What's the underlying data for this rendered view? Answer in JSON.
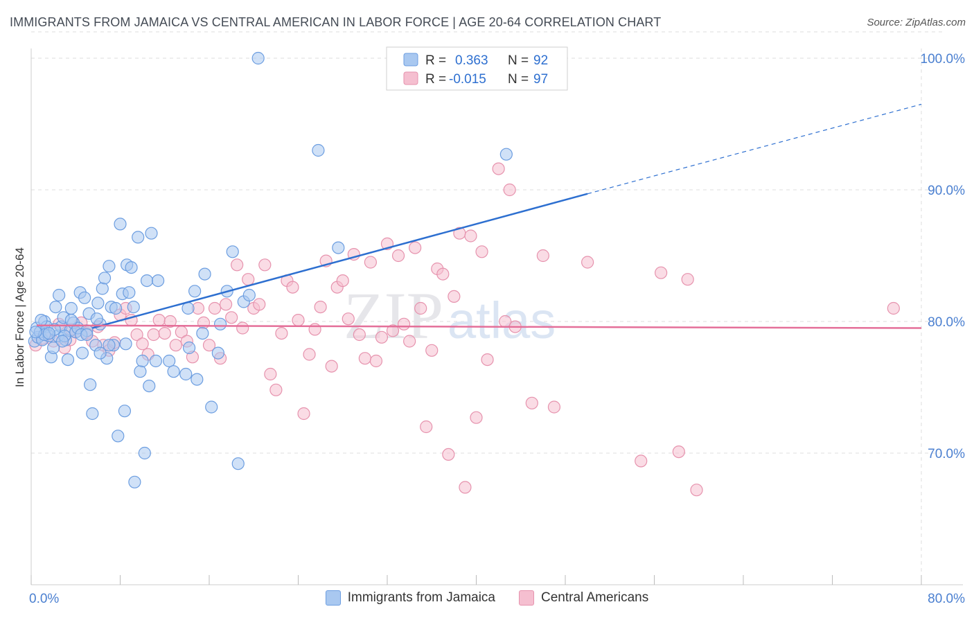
{
  "title": "IMMIGRANTS FROM JAMAICA VS CENTRAL AMERICAN IN LABOR FORCE | AGE 20-64 CORRELATION CHART",
  "source": "Source: ZipAtlas.com",
  "watermark": {
    "part1": "ZIP",
    "part2": "atlas"
  },
  "colors": {
    "blue_fill": "#a9c8f0",
    "blue_stroke": "#6b9de0",
    "blue_line": "#2d6fd0",
    "pink_fill": "#f5bfd0",
    "pink_stroke": "#e692ad",
    "pink_line": "#e46f99",
    "axis_text": "#4a7fd0",
    "grid": "#dcdcdc"
  },
  "legend": {
    "rows": [
      {
        "r_label": "R =",
        "r_value": "0.363",
        "n_label": "N =",
        "n_value": "92"
      },
      {
        "r_label": "R =",
        "r_value": "-0.015",
        "n_label": "N =",
        "n_value": "97"
      }
    ]
  },
  "chart_data": {
    "type": "scatter",
    "xlabel": "",
    "ylabel": "In Labor Force | Age 20-64",
    "xlim": [
      0,
      80
    ],
    "ylim": [
      60,
      102
    ],
    "x_tick_labels": [
      "0.0%",
      "80.0%"
    ],
    "y_ticks": [
      70,
      80,
      90,
      100
    ],
    "y_tick_labels": [
      "70.0%",
      "80.0%",
      "90.0%",
      "100.0%"
    ],
    "series": [
      {
        "name": "Immigrants from Jamaica",
        "color": "blue",
        "trend": {
          "x": [
            5.5,
            50
          ],
          "y": [
            79.5,
            89.7
          ],
          "dashed_to": [
            80,
            96.5
          ]
        },
        "points": [
          [
            0.3,
            78.5
          ],
          [
            0.5,
            79.5
          ],
          [
            0.6,
            78.8
          ],
          [
            0.8,
            79.2
          ],
          [
            1.0,
            78.6
          ],
          [
            1.2,
            80.0
          ],
          [
            1.4,
            79.6
          ],
          [
            1.6,
            78.9
          ],
          [
            1.8,
            77.3
          ],
          [
            2.0,
            78.0
          ],
          [
            2.2,
            81.1
          ],
          [
            2.4,
            78.9
          ],
          [
            2.5,
            82.0
          ],
          [
            2.7,
            79.6
          ],
          [
            2.9,
            80.3
          ],
          [
            3.1,
            78.6
          ],
          [
            3.3,
            77.1
          ],
          [
            3.5,
            79.3
          ],
          [
            3.6,
            81.0
          ],
          [
            3.8,
            79.9
          ],
          [
            4.0,
            79.2
          ],
          [
            4.2,
            79.5
          ],
          [
            4.4,
            82.2
          ],
          [
            4.6,
            77.6
          ],
          [
            4.8,
            81.8
          ],
          [
            5.0,
            79.3
          ],
          [
            5.2,
            80.6
          ],
          [
            5.3,
            75.2
          ],
          [
            5.5,
            73.0
          ],
          [
            5.8,
            78.2
          ],
          [
            6.0,
            81.4
          ],
          [
            6.2,
            79.8
          ],
          [
            6.4,
            82.5
          ],
          [
            6.6,
            83.3
          ],
          [
            6.8,
            77.2
          ],
          [
            7.0,
            84.2
          ],
          [
            7.2,
            81.1
          ],
          [
            7.4,
            78.2
          ],
          [
            7.6,
            81.0
          ],
          [
            7.8,
            71.3
          ],
          [
            8.0,
            87.4
          ],
          [
            8.2,
            82.1
          ],
          [
            8.4,
            73.2
          ],
          [
            8.6,
            84.3
          ],
          [
            8.8,
            82.2
          ],
          [
            9.0,
            84.1
          ],
          [
            9.2,
            81.1
          ],
          [
            9.3,
            67.8
          ],
          [
            9.6,
            86.4
          ],
          [
            9.8,
            76.2
          ],
          [
            10.0,
            77.0
          ],
          [
            10.2,
            70.0
          ],
          [
            10.4,
            83.1
          ],
          [
            10.6,
            75.1
          ],
          [
            10.8,
            86.7
          ],
          [
            11.2,
            77.0
          ],
          [
            11.4,
            83.1
          ],
          [
            12.4,
            77.0
          ],
          [
            12.8,
            76.2
          ],
          [
            13.9,
            76.0
          ],
          [
            14.1,
            81.0
          ],
          [
            14.2,
            78.0
          ],
          [
            14.7,
            82.3
          ],
          [
            14.9,
            75.6
          ],
          [
            15.4,
            79.1
          ],
          [
            15.6,
            83.6
          ],
          [
            16.2,
            73.5
          ],
          [
            16.8,
            77.6
          ],
          [
            17.0,
            79.8
          ],
          [
            17.6,
            82.3
          ],
          [
            18.1,
            85.3
          ],
          [
            18.6,
            69.2
          ],
          [
            19.1,
            81.5
          ],
          [
            19.6,
            82.0
          ],
          [
            20.4,
            100.0
          ],
          [
            25.8,
            93.0
          ],
          [
            27.6,
            85.6
          ],
          [
            42.7,
            92.7
          ],
          [
            1.2,
            79.0
          ],
          [
            2.1,
            79.4
          ],
          [
            3.0,
            78.9
          ],
          [
            4.5,
            79.0
          ],
          [
            0.9,
            80.1
          ],
          [
            5.0,
            79.0
          ],
          [
            6.2,
            77.6
          ],
          [
            7.0,
            78.2
          ],
          [
            8.5,
            78.3
          ],
          [
            1.6,
            79.1
          ],
          [
            3.6,
            80.1
          ],
          [
            0.4,
            79.2
          ],
          [
            2.8,
            78.5
          ],
          [
            5.9,
            80.2
          ]
        ]
      },
      {
        "name": "Central Americans",
        "color": "pink",
        "trend": {
          "x": [
            0.5,
            80
          ],
          "y": [
            79.7,
            79.5
          ]
        },
        "points": [
          [
            0.4,
            78.2
          ],
          [
            1.0,
            78.7
          ],
          [
            1.5,
            79.0
          ],
          [
            2.0,
            78.5
          ],
          [
            2.5,
            79.8
          ],
          [
            3.0,
            78.0
          ],
          [
            3.5,
            78.6
          ],
          [
            4.0,
            79.2
          ],
          [
            4.5,
            79.9
          ],
          [
            5.0,
            79.1
          ],
          [
            5.5,
            78.5
          ],
          [
            6.0,
            79.6
          ],
          [
            6.5,
            78.2
          ],
          [
            7.0,
            77.8
          ],
          [
            7.5,
            78.4
          ],
          [
            8.0,
            80.5
          ],
          [
            8.5,
            81.0
          ],
          [
            9.0,
            80.1
          ],
          [
            9.5,
            79.0
          ],
          [
            10.0,
            78.3
          ],
          [
            10.5,
            77.5
          ],
          [
            11.0,
            79.0
          ],
          [
            11.5,
            80.1
          ],
          [
            12.0,
            79.1
          ],
          [
            12.5,
            80.0
          ],
          [
            13.0,
            78.2
          ],
          [
            13.5,
            79.2
          ],
          [
            14.0,
            78.5
          ],
          [
            14.5,
            77.3
          ],
          [
            15.0,
            81.0
          ],
          [
            15.5,
            79.9
          ],
          [
            16.0,
            78.2
          ],
          [
            16.5,
            81.0
          ],
          [
            17.0,
            77.2
          ],
          [
            17.5,
            81.3
          ],
          [
            18.0,
            80.3
          ],
          [
            18.5,
            84.3
          ],
          [
            19.0,
            79.5
          ],
          [
            19.5,
            83.2
          ],
          [
            20.0,
            81.0
          ],
          [
            20.5,
            81.3
          ],
          [
            21.0,
            84.3
          ],
          [
            21.5,
            76.0
          ],
          [
            22.0,
            74.8
          ],
          [
            22.5,
            79.1
          ],
          [
            23.0,
            83.1
          ],
          [
            23.5,
            82.6
          ],
          [
            24.0,
            80.1
          ],
          [
            24.5,
            73.0
          ],
          [
            25.0,
            77.5
          ],
          [
            25.5,
            79.4
          ],
          [
            26.0,
            81.1
          ],
          [
            26.5,
            84.6
          ],
          [
            27.0,
            76.6
          ],
          [
            27.5,
            82.6
          ],
          [
            28.0,
            83.1
          ],
          [
            28.5,
            80.2
          ],
          [
            29.0,
            85.1
          ],
          [
            29.5,
            79.0
          ],
          [
            30.0,
            77.2
          ],
          [
            30.5,
            84.5
          ],
          [
            31.0,
            77.0
          ],
          [
            31.5,
            78.8
          ],
          [
            32.0,
            85.9
          ],
          [
            32.5,
            79.3
          ],
          [
            33.0,
            85.0
          ],
          [
            33.5,
            79.8
          ],
          [
            34.0,
            78.5
          ],
          [
            34.5,
            85.6
          ],
          [
            35.0,
            81.0
          ],
          [
            35.5,
            72.0
          ],
          [
            36.0,
            77.8
          ],
          [
            36.5,
            84.0
          ],
          [
            37.0,
            83.6
          ],
          [
            37.5,
            69.9
          ],
          [
            38.0,
            81.9
          ],
          [
            38.5,
            86.7
          ],
          [
            39.0,
            67.4
          ],
          [
            39.5,
            86.5
          ],
          [
            40.0,
            72.7
          ],
          [
            40.5,
            85.3
          ],
          [
            41.0,
            77.1
          ],
          [
            42.0,
            91.6
          ],
          [
            42.6,
            80.0
          ],
          [
            43.0,
            90.0
          ],
          [
            43.5,
            79.6
          ],
          [
            45.0,
            73.8
          ],
          [
            46.0,
            85.0
          ],
          [
            47.0,
            73.5
          ],
          [
            50.0,
            84.5
          ],
          [
            54.8,
            69.4
          ],
          [
            56.6,
            83.7
          ],
          [
            58.2,
            70.1
          ],
          [
            59.0,
            83.2
          ],
          [
            59.8,
            67.2
          ],
          [
            77.5,
            81.0
          ],
          [
            3.6,
            79.4
          ]
        ]
      }
    ]
  },
  "bottom_legend": [
    {
      "label": "Immigrants from Jamaica"
    },
    {
      "label": "Central Americans"
    }
  ]
}
